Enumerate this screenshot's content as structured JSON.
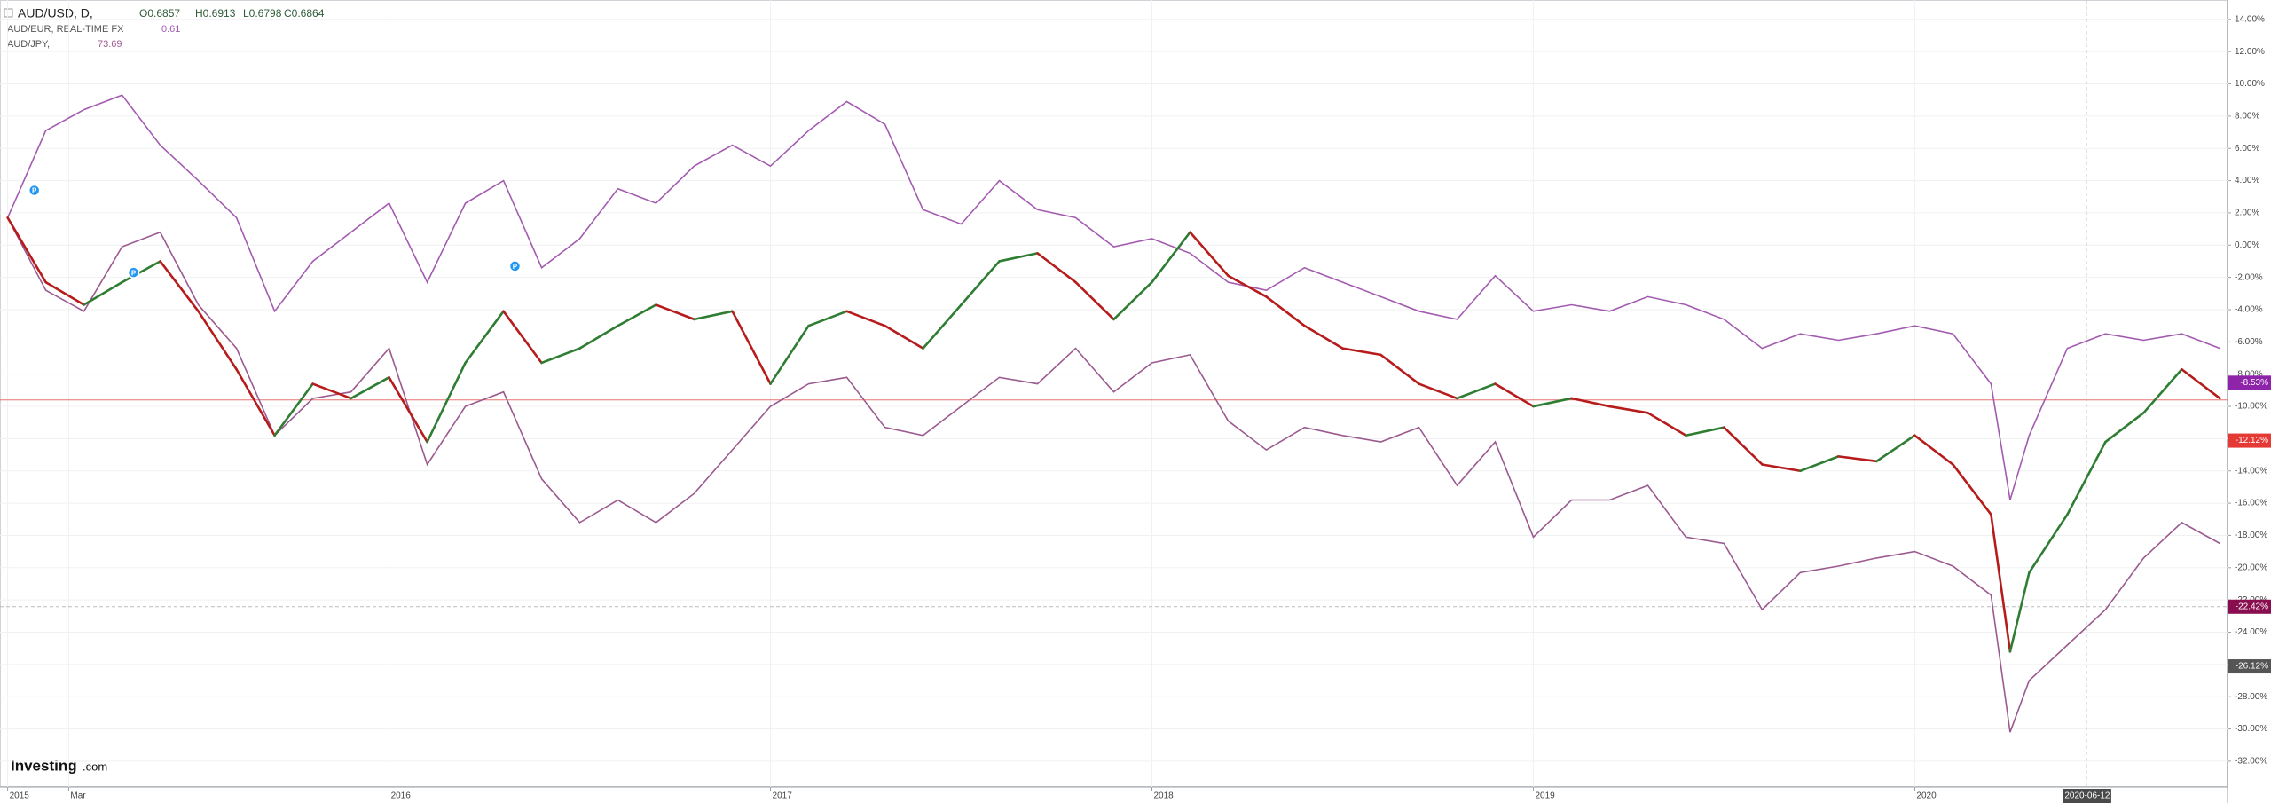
{
  "chart_data": {
    "type": "line",
    "xlim": [
      2014.98,
      2020.82
    ],
    "ylim": [
      -33.6,
      15.2
    ],
    "grid": true,
    "xticks": [
      2015,
      {
        "value": 2015.16,
        "label": "Mar"
      },
      2016,
      2017,
      2018,
      2019,
      2020
    ],
    "crosshair": {
      "value": 2020.45,
      "label": "2020-06-12"
    },
    "yticks": [
      {
        "value": 14,
        "label": "14.00%"
      },
      {
        "value": 12,
        "label": "12.00%"
      },
      {
        "value": 10,
        "label": "10.00%"
      },
      {
        "value": 8,
        "label": "8.00%"
      },
      {
        "value": 6,
        "label": "6.00%"
      },
      {
        "value": 4,
        "label": "4.00%"
      },
      {
        "value": 2,
        "label": "2.00%"
      },
      {
        "value": 0,
        "label": "0.00%"
      },
      {
        "value": -2,
        "label": "-2.00%"
      },
      {
        "value": -4,
        "label": "-4.00%"
      },
      {
        "value": -6,
        "label": "-6.00%"
      },
      {
        "value": -8,
        "label": "-8.00%"
      },
      {
        "value": -10,
        "label": "-10.00%"
      },
      {
        "value": -12,
        "label": "-12.00%"
      },
      {
        "value": -14,
        "label": "-14.00%"
      },
      {
        "value": -16,
        "label": "-16.00%"
      },
      {
        "value": -18,
        "label": "-18.00%"
      },
      {
        "value": -20,
        "label": "-20.00%"
      },
      {
        "value": -22,
        "label": "-22.00%"
      },
      {
        "value": -24,
        "label": "-24.00%"
      },
      {
        "value": -26,
        "label": "-26.00%"
      },
      {
        "value": -28,
        "label": "-28.00%"
      },
      {
        "value": -30,
        "label": "-30.00%"
      },
      {
        "value": -32,
        "label": "-32.00%"
      }
    ],
    "x": [
      2015.0,
      2015.1,
      2015.2,
      2015.3,
      2015.4,
      2015.5,
      2015.6,
      2015.7,
      2015.8,
      2015.9,
      2016.0,
      2016.1,
      2016.2,
      2016.3,
      2016.4,
      2016.5,
      2016.6,
      2016.7,
      2016.8,
      2016.9,
      2017.0,
      2017.1,
      2017.2,
      2017.3,
      2017.4,
      2017.5,
      2017.6,
      2017.7,
      2017.8,
      2017.9,
      2018.0,
      2018.1,
      2018.2,
      2018.3,
      2018.4,
      2018.5,
      2018.6,
      2018.7,
      2018.8,
      2018.9,
      2019.0,
      2019.1,
      2019.2,
      2019.3,
      2019.4,
      2019.5,
      2019.6,
      2019.7,
      2019.8,
      2019.9,
      2020.0,
      2020.1,
      2020.2,
      2020.25,
      2020.3,
      2020.4,
      2020.5,
      2020.6,
      2020.7,
      2020.8
    ],
    "series": [
      {
        "name": "AUD/USD, D,",
        "readout": [
          "O0.6857",
          "H0.6913",
          "L0.6798",
          "C0.6864"
        ],
        "color": "#1b1b1b",
        "up_color": "#2e7d32",
        "down_color": "#b71c1c",
        "values": [
          1.7,
          -2.3,
          -3.7,
          -2.3,
          -1.0,
          -4.1,
          -7.7,
          -11.8,
          -8.6,
          -9.5,
          -8.2,
          -12.2,
          -7.3,
          -4.1,
          -7.3,
          -6.4,
          -5.0,
          -3.7,
          -4.6,
          -4.1,
          -8.6,
          -5.0,
          -4.1,
          -5.0,
          -6.4,
          -3.7,
          -1.0,
          -0.5,
          -2.3,
          -4.6,
          -2.3,
          0.8,
          -1.9,
          -3.2,
          -5.0,
          -6.4,
          -6.8,
          -8.6,
          -9.5,
          -8.6,
          -10.0,
          -9.5,
          -10.0,
          -10.4,
          -11.8,
          -11.3,
          -13.6,
          -14.0,
          -13.1,
          -13.4,
          -11.8,
          -13.6,
          -16.7,
          -25.2,
          -20.3,
          -16.7,
          -12.2,
          -10.4,
          -7.7,
          -9.5
        ]
      },
      {
        "name": "AUD/EUR, REAL-TIME FX",
        "readout": [
          "0.61"
        ],
        "color": "#a35bb0",
        "values": [
          1.7,
          7.1,
          8.4,
          9.3,
          6.2,
          4.0,
          1.7,
          -4.1,
          -1.0,
          0.8,
          2.6,
          -2.3,
          2.6,
          4.0,
          -1.4,
          0.4,
          3.5,
          2.6,
          4.9,
          6.2,
          4.9,
          7.1,
          8.9,
          7.5,
          2.2,
          1.3,
          4.0,
          2.2,
          1.7,
          -0.1,
          0.4,
          -0.5,
          -2.3,
          -2.8,
          -1.4,
          -2.3,
          -3.2,
          -4.1,
          -4.6,
          -1.9,
          -4.1,
          -3.7,
          -4.1,
          -3.2,
          -3.7,
          -4.6,
          -6.4,
          -5.5,
          -5.9,
          -5.5,
          -5.0,
          -5.5,
          -8.6,
          -15.8,
          -11.8,
          -6.4,
          -5.5,
          -5.9,
          -5.5,
          -6.4
        ]
      },
      {
        "name": "AUD/JPY,",
        "readout": [
          "73.69"
        ],
        "color": "#9b5a8f",
        "values": [
          1.7,
          -2.8,
          -4.1,
          -0.1,
          0.8,
          -3.7,
          -6.4,
          -11.8,
          -9.5,
          -9.1,
          -6.4,
          -13.6,
          -10.0,
          -9.1,
          -14.5,
          -17.2,
          -15.8,
          -17.2,
          -15.4,
          -12.7,
          -10.0,
          -8.6,
          -8.2,
          -11.3,
          -11.8,
          -10.0,
          -8.2,
          -8.6,
          -6.4,
          -9.1,
          -7.3,
          -6.8,
          -10.9,
          -12.7,
          -11.3,
          -11.8,
          -12.2,
          -11.3,
          -14.9,
          -12.2,
          -18.1,
          -15.8,
          -15.8,
          -14.9,
          -18.1,
          -18.5,
          -22.6,
          -20.3,
          -19.9,
          -19.4,
          -19.0,
          -19.9,
          -21.7,
          -30.2,
          -27.0,
          -24.8,
          -22.6,
          -19.4,
          -17.2,
          -18.5
        ]
      }
    ],
    "price_line": -9.6,
    "last_value_labels": [
      {
        "value": -8.53,
        "label": "-8.53%",
        "color": "#8e24aa"
      },
      {
        "value": -12.12,
        "label": "-12.12%",
        "color": "#e53935"
      },
      {
        "value": -22.42,
        "label": "-22.42%",
        "color": "#880e4f"
      },
      {
        "value": -26.12,
        "label": "-26.12%",
        "color": "#555555"
      }
    ],
    "markers": [
      {
        "label": "P",
        "x": 2015.07,
        "y": 3.4
      },
      {
        "label": "P",
        "x": 2015.33,
        "y": -1.7
      },
      {
        "label": "P",
        "x": 2016.33,
        "y": -1.3
      }
    ],
    "logo": {
      "brand": "Investing",
      "suffix": ".com"
    }
  }
}
